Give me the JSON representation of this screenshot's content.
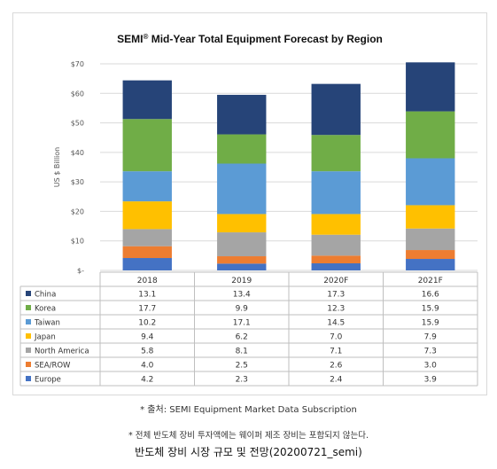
{
  "chart_data": {
    "type": "bar",
    "stacked": true,
    "title": "SEMI",
    "title_mark": "®",
    "title_rest": " Mid-Year Total Equipment Forecast by Region",
    "ylabel": "US $ Billion",
    "ylim": [
      0,
      70
    ],
    "yticks": [
      "$-",
      "$10",
      "$20",
      "$30",
      "$40",
      "$50",
      "$60",
      "$70"
    ],
    "grid": true,
    "legend_placement": "table-left",
    "categories": [
      "2018",
      "2019",
      "2020F",
      "2021F"
    ],
    "series": [
      {
        "name": "Europe",
        "color": "#4472c4",
        "values": [
          4.2,
          2.3,
          2.4,
          3.9
        ]
      },
      {
        "name": "SEA/ROW",
        "color": "#ed7d31",
        "values": [
          4.0,
          2.5,
          2.6,
          3.0
        ]
      },
      {
        "name": "North America",
        "color": "#a5a5a5",
        "values": [
          5.8,
          8.1,
          7.1,
          7.3
        ]
      },
      {
        "name": "Japan",
        "color": "#ffc000",
        "values": [
          9.4,
          6.2,
          7.0,
          7.9
        ]
      },
      {
        "name": "Taiwan",
        "color": "#5b9bd5",
        "values": [
          10.2,
          17.1,
          14.5,
          15.9
        ]
      },
      {
        "name": "Korea",
        "color": "#70ad47",
        "values": [
          17.7,
          9.9,
          12.3,
          15.9
        ]
      },
      {
        "name": "China",
        "color": "#264478",
        "values": [
          13.1,
          13.4,
          17.3,
          16.6
        ]
      }
    ],
    "table_row_order": [
      "China",
      "Korea",
      "Taiwan",
      "Japan",
      "North America",
      "SEA/ROW",
      "Europe"
    ],
    "value_labels": {
      "China": [
        "13.1",
        "13.4",
        "17.3",
        "16.6"
      ],
      "Korea": [
        "17.7",
        "9.9",
        "12.3",
        "15.9"
      ],
      "Taiwan": [
        "10.2",
        "17.1",
        "14.5",
        "15.9"
      ],
      "Japan": [
        "9.4",
        "6.2",
        "7.0",
        "7.9"
      ],
      "North America": [
        "5.8",
        "8.1",
        "7.1",
        "7.3"
      ],
      "SEA/ROW": [
        "4.0",
        "2.5",
        "2.6",
        "3.0"
      ],
      "Europe": [
        "4.2",
        "2.3",
        "2.4",
        "3.9"
      ]
    }
  },
  "source_text": "* 출처: SEMI Equipment Market Data Subscription",
  "note_text": "* 전체 반도체 장비 투자액에는 웨이퍼 제조 장비는 포함되지 않는다.",
  "caption_text": "반도체 장비 시장 규모 및 전망(20200721_semi)"
}
